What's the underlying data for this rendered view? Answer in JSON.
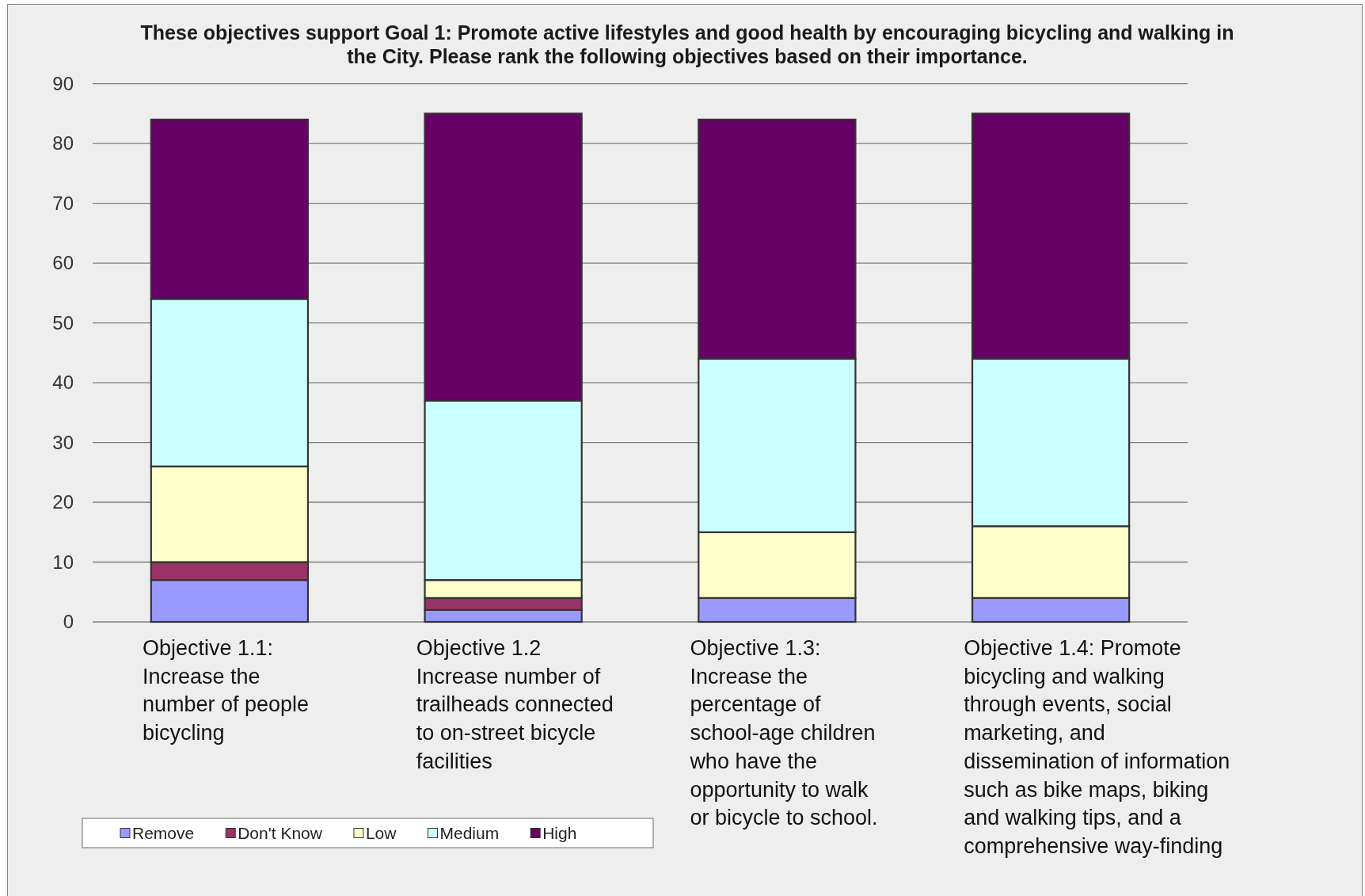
{
  "chart_data": {
    "type": "bar",
    "stacked": true,
    "title": "These objectives support Goal 1: Promote active lifestyles and good health by encouraging bicycling and walking in the City. Please rank the following objectives based on their importance.",
    "categories": [
      "Objective 1.1: Increase the number of people bicycling",
      "Objective 1.2 Increase number of trailheads connected to on-street bicycle facilities",
      "Objective 1.3: Increase the percentage of school-age children who have the opportunity to walk or bicycle to school.",
      "Objective 1.4: Promote bicycling and walking through events, social marketing, and dissemination of information such as bike maps, biking and walking tips, and a comprehensive way-finding"
    ],
    "series": [
      {
        "name": "Remove",
        "color": "#9999ff",
        "values": [
          7,
          2,
          4,
          4
        ]
      },
      {
        "name": "Don't Know",
        "color": "#993366",
        "values": [
          3,
          2,
          0,
          0
        ]
      },
      {
        "name": "Low",
        "color": "#ffffcc",
        "values": [
          16,
          3,
          11,
          12
        ]
      },
      {
        "name": "Medium",
        "color": "#ccffff",
        "values": [
          28,
          30,
          29,
          28
        ]
      },
      {
        "name": "High",
        "color": "#660066",
        "values": [
          30,
          48,
          40,
          41
        ]
      }
    ],
    "ylim": [
      0,
      90
    ],
    "yticks": [
      0,
      10,
      20,
      30,
      40,
      50,
      60,
      70,
      80,
      90
    ],
    "grid": "y",
    "legend": "bottom left"
  }
}
